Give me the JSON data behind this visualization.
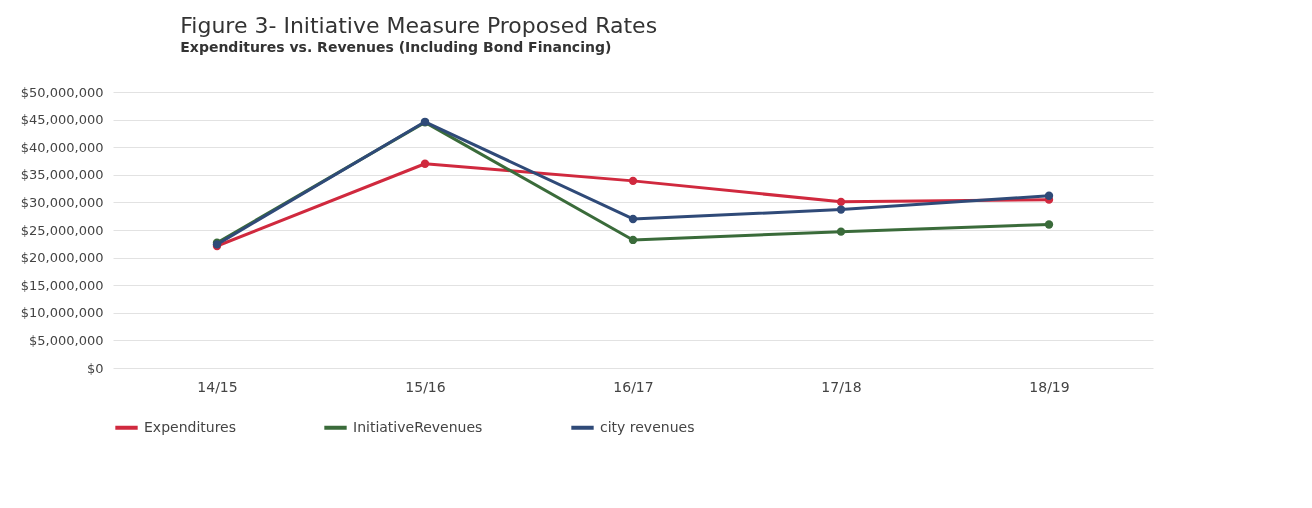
{
  "chart_data": {
    "type": "line",
    "title": "Figure 3- Initiative Measure Proposed Rates",
    "subtitle": "Expenditures vs. Revenues (Including Bond Financing)",
    "categories": [
      "14/15",
      "15/16",
      "16/17",
      "17/18",
      "18/19"
    ],
    "series": [
      {
        "name": "Expenditures",
        "color": "#d0293e",
        "values": [
          22100000,
          37000000,
          33900000,
          30100000,
          30500000
        ]
      },
      {
        "name": "InitiativeRevenues",
        "color": "#3a6b3a",
        "values": [
          22700000,
          44500000,
          23200000,
          24700000,
          26000000
        ]
      },
      {
        "name": "city revenues",
        "color": "#2f4a78",
        "values": [
          22400000,
          44600000,
          27000000,
          28700000,
          31200000
        ]
      }
    ],
    "ylim": [
      0,
      50000000
    ],
    "yticks": [
      {
        "value": 0,
        "label": "$0"
      },
      {
        "value": 5000000,
        "label": "$5,000,000"
      },
      {
        "value": 10000000,
        "label": "$10,000,000"
      },
      {
        "value": 15000000,
        "label": "$15,000,000"
      },
      {
        "value": 20000000,
        "label": "$20,000,000"
      },
      {
        "value": 25000000,
        "label": "$25,000,000"
      },
      {
        "value": 30000000,
        "label": "$30,000,000"
      },
      {
        "value": 35000000,
        "label": "$35,000,000"
      },
      {
        "value": 40000000,
        "label": "$40,000,000"
      },
      {
        "value": 45000000,
        "label": "$45,000,000"
      },
      {
        "value": 50000000,
        "label": "$50,000,000"
      }
    ],
    "grid": "y",
    "legend": "bottom",
    "marker": "circle",
    "line_style": "solid"
  }
}
